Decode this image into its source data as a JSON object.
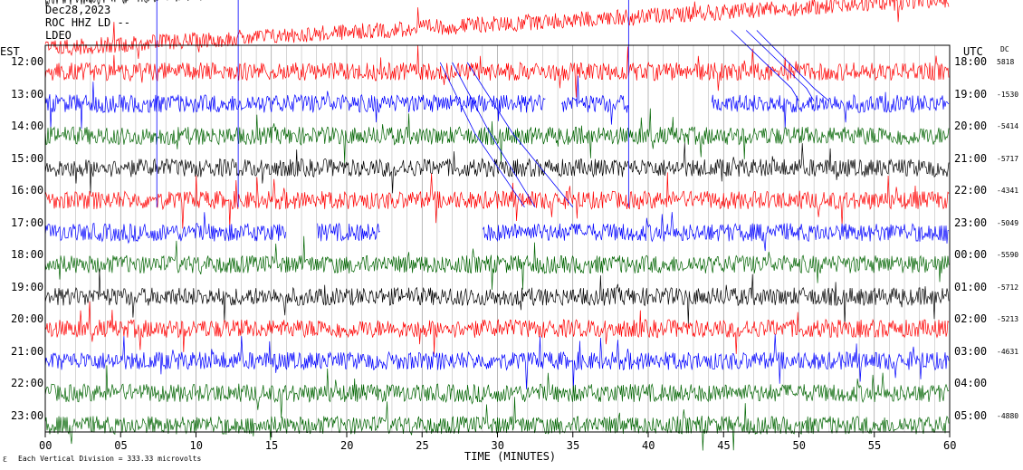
{
  "header": {
    "date": "Dec28,2023",
    "station": "ROC HHZ LD --",
    "network_line": "LDEO"
  },
  "left_axis_title": "EST",
  "right_axis_title": "UTC",
  "dc_title": "DC",
  "x_axis_title": "TIME (MINUTES)",
  "footer": {
    "icon_glyph": "ℇ",
    "text": "Each Vertical Division =  333.33 microvolts"
  },
  "colors": {
    "black": "#000000",
    "red": "#ff0000",
    "blue": "#0000ff",
    "green": "#006400"
  },
  "chart_data": {
    "type": "line",
    "title": "Dec28,2023 ROC HHZ LD --",
    "xlabel": "TIME (MINUTES)",
    "xlim": [
      0,
      60
    ],
    "x_ticks": [
      "00",
      "05",
      "10",
      "15",
      "20",
      "25",
      "30",
      "35",
      "40",
      "45",
      "50",
      "55",
      "60"
    ],
    "grid": "vertical lines every minute",
    "rows": [
      {
        "est": "12:00",
        "utc": "18:00",
        "dc": "5818",
        "color": "red",
        "offset": 0
      },
      {
        "est": "13:00",
        "utc": "19:00",
        "dc": "-1530",
        "color": "blue",
        "gaps": [
          [
            33.2,
            34.2
          ],
          [
            38.7,
            44.2
          ]
        ],
        "offset": -2
      },
      {
        "est": "14:00",
        "utc": "20:00",
        "dc": "-5414",
        "color": "green",
        "offset": 0
      },
      {
        "est": "15:00",
        "utc": "21:00",
        "dc": "-5717",
        "color": "black",
        "offset": 0
      },
      {
        "est": "16:00",
        "utc": "22:00",
        "dc": "-4341",
        "color": "red",
        "offset": 0
      },
      {
        "est": "17:00",
        "utc": "23:00",
        "dc": "-5049",
        "color": "blue",
        "gaps": [
          [
            16,
            18
          ],
          [
            22.2,
            29
          ]
        ],
        "offset": 20
      },
      {
        "est": "18:00",
        "utc": "00:00",
        "dc": "-5590",
        "color": "green",
        "offset": 0
      },
      {
        "est": "19:00",
        "utc": "01:00",
        "dc": "-5712",
        "color": "black",
        "offset": 0
      },
      {
        "est": "20:00",
        "utc": "02:00",
        "dc": "-5213",
        "color": "red",
        "offset": 0
      },
      {
        "est": "21:00",
        "utc": "03:00",
        "dc": "-4631",
        "color": "blue",
        "offset": 0
      },
      {
        "est": "22:00",
        "utc": "04:00",
        "dc": "",
        "color": "green",
        "offset": 0
      },
      {
        "est": "23:00",
        "utc": "05:00",
        "dc": "-4880",
        "color": "green",
        "offset": 0
      }
    ],
    "pre_rows": [
      {
        "color": "black"
      },
      {
        "color": "red"
      }
    ]
  }
}
